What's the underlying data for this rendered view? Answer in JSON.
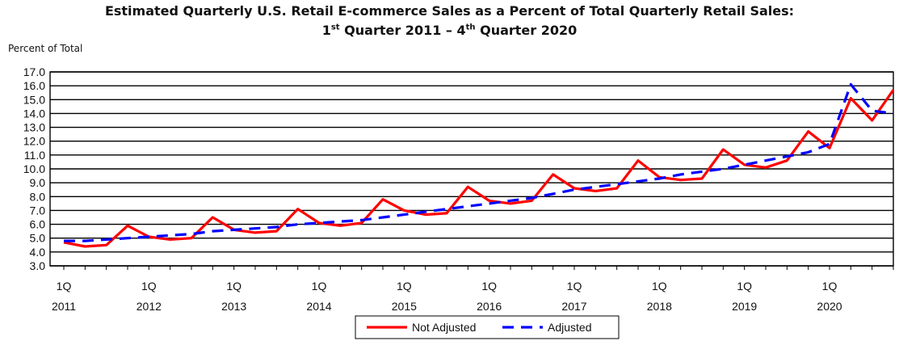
{
  "chart_data": {
    "type": "line",
    "title": "Estimated Quarterly U.S. Retail E-commerce Sales as a Percent of Total Quarterly Retail Sales:",
    "subtitle": {
      "q1_num": "1",
      "q1_sup": "st",
      "q1_text": " Quarter 2011 – ",
      "q2_num": "4",
      "q2_sup": "th",
      "q2_text": " Quarter 2020"
    },
    "ylabel": "Percent of Total",
    "ylim": [
      3.0,
      17.0
    ],
    "yticks": [
      "3.0",
      "4.0",
      "5.0",
      "6.0",
      "7.0",
      "8.0",
      "9.0",
      "10.0",
      "11.0",
      "12.0",
      "13.0",
      "14.0",
      "15.0",
      "16.0",
      "17.0"
    ],
    "xtick_top": "1Q",
    "xticks": [
      "2011",
      "2012",
      "2013",
      "2014",
      "2015",
      "2016",
      "2017",
      "2018",
      "2019",
      "2020"
    ],
    "legend_position": "bottom-center",
    "series": [
      {
        "name": "Not Adjusted",
        "color": "#ff0000",
        "dashed": false,
        "values": [
          4.7,
          4.4,
          4.5,
          5.9,
          5.1,
          4.9,
          5.0,
          6.5,
          5.6,
          5.4,
          5.5,
          7.1,
          6.1,
          5.9,
          6.1,
          7.8,
          7.0,
          6.7,
          6.8,
          8.7,
          7.7,
          7.5,
          7.7,
          9.6,
          8.6,
          8.4,
          8.6,
          10.6,
          9.4,
          9.2,
          9.3,
          11.4,
          10.3,
          10.1,
          10.6,
          12.7,
          11.5,
          15.1,
          13.5,
          15.7
        ]
      },
      {
        "name": "Adjusted",
        "color": "#0000ff",
        "dashed": true,
        "values": [
          4.8,
          4.8,
          4.9,
          5.0,
          5.1,
          5.2,
          5.3,
          5.5,
          5.6,
          5.7,
          5.8,
          6.0,
          6.1,
          6.2,
          6.3,
          6.5,
          6.7,
          6.9,
          7.1,
          7.3,
          7.5,
          7.7,
          7.9,
          8.2,
          8.5,
          8.7,
          8.9,
          9.1,
          9.3,
          9.6,
          9.8,
          10.0,
          10.3,
          10.6,
          10.9,
          11.2,
          11.8,
          16.1,
          14.2,
          14.0
        ]
      }
    ]
  }
}
